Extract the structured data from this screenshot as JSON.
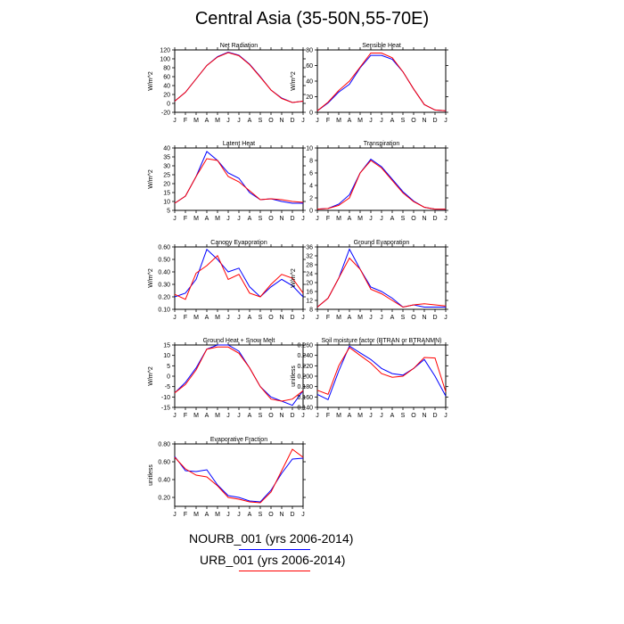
{
  "page_title": "Central Asia (35-50N,55-70E)",
  "colors": {
    "NOURB_001": "#0000ff",
    "URB_001": "#ff0000"
  },
  "legend": [
    {
      "label": "NOURB_001 (yrs 2006-2014)",
      "color": "#0000ff"
    },
    {
      "label": "URB_001 (yrs 2006-2014)",
      "color": "#ff0000"
    }
  ],
  "chart_data": [
    {
      "type": "line",
      "title": "Net Radiation",
      "ylabel": "W/m^2",
      "categories": [
        "J",
        "F",
        "M",
        "A",
        "M",
        "J",
        "J",
        "A",
        "S",
        "O",
        "N",
        "D",
        "J"
      ],
      "ylim": [
        -20,
        120
      ],
      "yticks": [
        "-20",
        "0",
        "20",
        "40",
        "60",
        "80",
        "100",
        "120"
      ],
      "series": [
        {
          "name": "NOURB_001",
          "values": [
            5,
            25,
            55,
            85,
            105,
            115,
            108,
            88,
            60,
            30,
            12,
            2,
            5
          ]
        },
        {
          "name": "URB_001",
          "values": [
            5,
            25,
            55,
            85,
            104,
            114,
            107,
            87,
            59,
            30,
            11,
            2,
            5
          ]
        }
      ]
    },
    {
      "type": "line",
      "title": "Sensible Heat",
      "ylabel": "W/m^2",
      "categories": [
        "J",
        "F",
        "M",
        "A",
        "M",
        "J",
        "J",
        "A",
        "S",
        "O",
        "N",
        "D",
        "J"
      ],
      "ylim": [
        0,
        80
      ],
      "yticks": [
        "0",
        "20",
        "40",
        "60",
        "80"
      ],
      "series": [
        {
          "name": "NOURB_001",
          "values": [
            2,
            12,
            26,
            36,
            57,
            73,
            73,
            68,
            52,
            30,
            10,
            3,
            2
          ]
        },
        {
          "name": "URB_001",
          "values": [
            2,
            13,
            28,
            40,
            58,
            76,
            76,
            70,
            52,
            30,
            10,
            3,
            2
          ]
        }
      ]
    },
    {
      "type": "line",
      "title": "Latent Heat",
      "ylabel": "W/m^2",
      "categories": [
        "J",
        "F",
        "M",
        "A",
        "M",
        "J",
        "J",
        "A",
        "S",
        "O",
        "N",
        "D",
        "J"
      ],
      "ylim": [
        5,
        40
      ],
      "yticks": [
        "5",
        "10",
        "15",
        "20",
        "25",
        "30",
        "35",
        "40"
      ],
      "series": [
        {
          "name": "NOURB_001",
          "values": [
            9,
            13,
            24,
            38,
            33,
            26,
            23,
            15,
            11,
            11.5,
            10,
            9,
            9
          ]
        },
        {
          "name": "URB_001",
          "values": [
            9,
            13,
            24,
            34,
            33,
            24,
            21,
            16,
            11,
            11.5,
            11,
            10,
            9.5
          ]
        }
      ]
    },
    {
      "type": "line",
      "title": "Transpiration",
      "ylabel": "",
      "categories": [
        "J",
        "F",
        "M",
        "A",
        "M",
        "J",
        "J",
        "A",
        "S",
        "O",
        "N",
        "D",
        "J"
      ],
      "ylim": [
        0,
        10
      ],
      "yticks": [
        "0",
        "2",
        "4",
        "6",
        "8",
        "10"
      ],
      "series": [
        {
          "name": "NOURB_001",
          "values": [
            0.2,
            0.3,
            1.0,
            2.5,
            6.0,
            8.2,
            7.0,
            5.0,
            3.0,
            1.5,
            0.5,
            0.2,
            0.2
          ]
        },
        {
          "name": "URB_001",
          "values": [
            0.2,
            0.3,
            0.8,
            2.0,
            6.0,
            8.0,
            6.8,
            4.8,
            2.8,
            1.4,
            0.5,
            0.2,
            0.2
          ]
        }
      ]
    },
    {
      "type": "line",
      "title": "Canopy Evaporation",
      "ylabel": "W/m^2",
      "categories": [
        "J",
        "F",
        "M",
        "A",
        "M",
        "J",
        "J",
        "A",
        "S",
        "O",
        "N",
        "D",
        "J"
      ],
      "ylim": [
        0.1,
        0.6
      ],
      "yticks": [
        "0.10",
        "0.20",
        "0.30",
        "0.40",
        "0.50",
        "0.60"
      ],
      "series": [
        {
          "name": "NOURB_001",
          "values": [
            0.2,
            0.23,
            0.34,
            0.58,
            0.5,
            0.4,
            0.43,
            0.28,
            0.2,
            0.28,
            0.34,
            0.29,
            0.2
          ]
        },
        {
          "name": "URB_001",
          "values": [
            0.22,
            0.18,
            0.39,
            0.45,
            0.53,
            0.34,
            0.38,
            0.23,
            0.2,
            0.3,
            0.38,
            0.35,
            0.23
          ]
        }
      ]
    },
    {
      "type": "line",
      "title": "Ground Evaporation",
      "ylabel": "W/m^2",
      "categories": [
        "J",
        "F",
        "M",
        "A",
        "M",
        "J",
        "J",
        "A",
        "S",
        "O",
        "N",
        "D",
        "J"
      ],
      "ylim": [
        8,
        36
      ],
      "yticks": [
        "8",
        "12",
        "16",
        "20",
        "24",
        "28",
        "32",
        "36"
      ],
      "series": [
        {
          "name": "NOURB_001",
          "values": [
            9,
            13,
            22,
            35,
            26,
            18,
            16,
            13,
            9,
            10,
            9,
            9,
            9
          ]
        },
        {
          "name": "URB_001",
          "values": [
            9,
            13,
            22,
            31,
            26,
            17,
            15,
            12,
            9,
            10,
            10.5,
            10,
            9.5
          ]
        }
      ]
    },
    {
      "type": "line",
      "title": "Ground Heat + Snow Melt",
      "ylabel": "W/m^2",
      "categories": [
        "J",
        "F",
        "M",
        "A",
        "M",
        "J",
        "J",
        "A",
        "S",
        "O",
        "N",
        "D",
        "J"
      ],
      "ylim": [
        -15,
        15
      ],
      "yticks": [
        "-15",
        "-10",
        "-5",
        "0",
        "5",
        "10",
        "15"
      ],
      "series": [
        {
          "name": "NOURB_001",
          "values": [
            -8,
            -3,
            4,
            13,
            15,
            15,
            12,
            4,
            -5,
            -10,
            -12,
            -14,
            -7
          ]
        },
        {
          "name": "URB_001",
          "values": [
            -8,
            -4,
            3,
            13,
            14,
            14,
            11,
            4,
            -5,
            -11,
            -12,
            -11,
            -7
          ]
        }
      ]
    },
    {
      "type": "line",
      "title": "Soil moisture factor (BTRAN or BTRANMN)",
      "ylabel": "unitless",
      "categories": [
        "J",
        "F",
        "M",
        "A",
        "M",
        "J",
        "J",
        "A",
        "S",
        "O",
        "N",
        "D",
        "J"
      ],
      "ylim": [
        0.14,
        0.26
      ],
      "yticks": [
        "0.140",
        "0.160",
        "0.180",
        "0.200",
        "0.220",
        "0.240",
        "0.260"
      ],
      "series": [
        {
          "name": "NOURB_001",
          "values": [
            0.165,
            0.155,
            0.21,
            0.258,
            0.245,
            0.232,
            0.215,
            0.205,
            0.202,
            0.215,
            0.232,
            0.2,
            0.162
          ]
        },
        {
          "name": "URB_001",
          "values": [
            0.173,
            0.165,
            0.22,
            0.255,
            0.24,
            0.225,
            0.205,
            0.198,
            0.2,
            0.215,
            0.236,
            0.235,
            0.17
          ]
        }
      ]
    },
    {
      "type": "line",
      "title": "Evaporative Fraction",
      "ylabel": "unitless",
      "categories": [
        "J",
        "F",
        "M",
        "A",
        "M",
        "J",
        "J",
        "A",
        "S",
        "O",
        "N",
        "D",
        "J"
      ],
      "ylim": [
        0.1,
        0.8
      ],
      "yticks": [
        "0.20",
        "0.40",
        "0.60",
        "0.80"
      ],
      "series": [
        {
          "name": "NOURB_001",
          "values": [
            0.66,
            0.5,
            0.49,
            0.51,
            0.34,
            0.22,
            0.2,
            0.16,
            0.15,
            0.28,
            0.47,
            0.63,
            0.64
          ]
        },
        {
          "name": "URB_001",
          "values": [
            0.65,
            0.52,
            0.45,
            0.43,
            0.33,
            0.2,
            0.18,
            0.15,
            0.14,
            0.26,
            0.5,
            0.74,
            0.65
          ]
        }
      ]
    }
  ]
}
